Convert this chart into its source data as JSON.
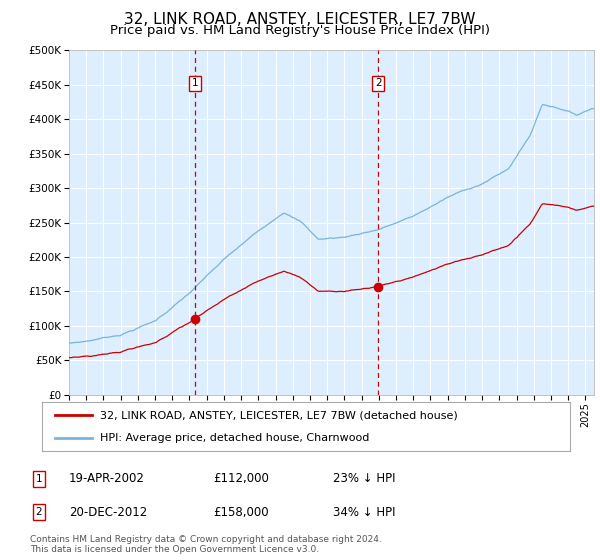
{
  "title": "32, LINK ROAD, ANSTEY, LEICESTER, LE7 7BW",
  "subtitle": "Price paid vs. HM Land Registry's House Price Index (HPI)",
  "title_fontsize": 11,
  "subtitle_fontsize": 9.5,
  "background_color": "#ffffff",
  "plot_bg_color": "#ddeeff",
  "grid_color": "#ffffff",
  "hpi_line_color": "#7ab4d8",
  "price_line_color": "#cc0000",
  "marker_color": "#cc0000",
  "vline_color": "#cc0000",
  "ylim": [
    0,
    500000
  ],
  "yticks": [
    0,
    50000,
    100000,
    150000,
    200000,
    250000,
    300000,
    350000,
    400000,
    450000,
    500000
  ],
  "ytick_labels": [
    "£0",
    "£50K",
    "£100K",
    "£150K",
    "£200K",
    "£250K",
    "£300K",
    "£350K",
    "£400K",
    "£450K",
    "£500K"
  ],
  "legend_entry1": "32, LINK ROAD, ANSTEY, LEICESTER, LE7 7BW (detached house)",
  "legend_entry2": "HPI: Average price, detached house, Charnwood",
  "transaction1_date": "19-APR-2002",
  "transaction1_price": "£112,000",
  "transaction1_note": "23% ↓ HPI",
  "transaction2_date": "20-DEC-2012",
  "transaction2_price": "£158,000",
  "transaction2_note": "34% ↓ HPI",
  "footnote_line1": "Contains HM Land Registry data © Crown copyright and database right 2024.",
  "footnote_line2": "This data is licensed under the Open Government Licence v3.0.",
  "transaction1_x": 2002.3,
  "transaction2_x": 2012.97,
  "transaction1_y": 112000,
  "transaction2_y": 158000,
  "xlim_left": 1995,
  "xlim_right": 2025.5
}
